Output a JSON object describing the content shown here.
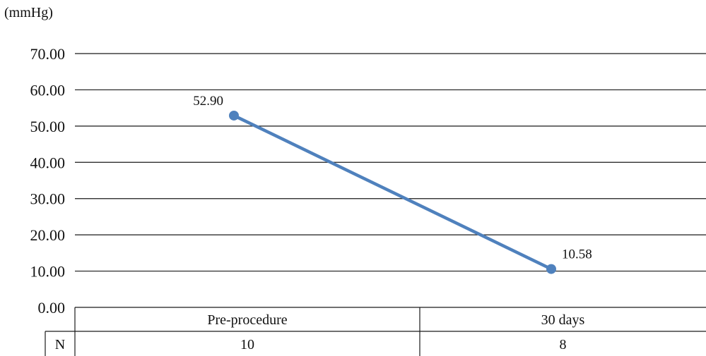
{
  "chart_data": {
    "type": "line",
    "unit_label": "(mmHg)",
    "categories": [
      "Pre-procedure",
      "30 days"
    ],
    "series": [
      {
        "values": [
          52.9,
          10.58
        ],
        "labels": [
          "52.90",
          "10.58"
        ],
        "color": "#4f81bd"
      }
    ],
    "ylim": [
      0,
      70
    ],
    "yticks": [
      0,
      10,
      20,
      30,
      40,
      50,
      60,
      70
    ],
    "ytick_labels": [
      "0.00",
      "10.00",
      "20.00",
      "30.00",
      "40.00",
      "50.00",
      "60.00",
      "70.00"
    ],
    "grid": true,
    "legend": null,
    "data_table": {
      "row_header": "N",
      "values": [
        "10",
        "8"
      ]
    }
  }
}
